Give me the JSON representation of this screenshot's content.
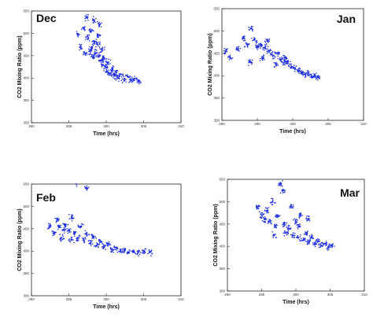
{
  "colors": {
    "points": "#1f2fe6",
    "frame": "#222222",
    "background": "#ffffff"
  },
  "chart_data": [
    {
      "type": "scatter",
      "panel_label": "Dec",
      "legend_position": "top-left",
      "xlabel": "Time (hrs)",
      "ylabel": "CO2 Mixing Ratio (ppm)",
      "xlim": [
        290,
        310
      ],
      "ylim": [
        300,
        550
      ],
      "xticks": [
        "290",
        "295",
        "300",
        "305",
        "310"
      ],
      "yticks": [
        "300",
        "350",
        "400",
        "450",
        "500",
        "550"
      ],
      "grid": false,
      "series": [
        {
          "values": [
            [
              296.2,
              498
            ],
            [
              296.6,
              470
            ],
            [
              297.0,
              512
            ],
            [
              297.3,
              535
            ],
            [
              297.6,
              490
            ],
            [
              297.9,
              505
            ],
            [
              298.1,
              470
            ],
            [
              298.3,
              530
            ],
            [
              298.4,
              480
            ],
            [
              298.6,
              455
            ],
            [
              298.8,
              475
            ],
            [
              299.0,
              450
            ],
            [
              299.1,
              520
            ],
            [
              299.3,
              440
            ],
            [
              299.5,
              430
            ],
            [
              299.7,
              445
            ],
            [
              299.9,
              425
            ],
            [
              300.1,
              415
            ],
            [
              300.3,
              435
            ],
            [
              300.5,
              410
            ],
            [
              300.8,
              420
            ],
            [
              301.0,
              405
            ],
            [
              301.3,
              412
            ],
            [
              301.6,
              400
            ],
            [
              302.0,
              408
            ],
            [
              302.4,
              398
            ],
            [
              302.9,
              403
            ],
            [
              303.3,
              396
            ],
            [
              303.8,
              399
            ],
            [
              304.3,
              394
            ],
            [
              297.8,
              460
            ],
            [
              298.9,
              495
            ],
            [
              299.4,
              465
            ],
            [
              298.2,
              447
            ],
            [
              297.2,
              455
            ]
          ]
        }
      ]
    },
    {
      "type": "scatter",
      "panel_label": "Jan",
      "legend_position": "top-right",
      "xlabel": "Time (hrs)",
      "ylabel": "CO2 Mixing Ratio (ppm)",
      "xlim": [
        290,
        310
      ],
      "ylim": [
        300,
        550
      ],
      "xticks": [
        "290",
        "295",
        "300",
        "305",
        "310"
      ],
      "yticks": [
        "300",
        "350",
        "400",
        "450",
        "500",
        "550"
      ],
      "grid": false,
      "series": [
        {
          "values": [
            [
              290.5,
              455
            ],
            [
              291.2,
              440
            ],
            [
              292.3,
              460
            ],
            [
              293.1,
              485
            ],
            [
              293.6,
              470
            ],
            [
              294.1,
              505
            ],
            [
              294.6,
              480
            ],
            [
              295.0,
              465
            ],
            [
              295.5,
              470
            ],
            [
              296.1,
              462
            ],
            [
              296.7,
              455
            ],
            [
              297.2,
              445
            ],
            [
              297.8,
              450
            ],
            [
              298.3,
              435
            ],
            [
              298.8,
              430
            ],
            [
              299.3,
              428
            ],
            [
              299.8,
              420
            ],
            [
              300.3,
              415
            ],
            [
              300.8,
              412
            ],
            [
              301.3,
              408
            ],
            [
              301.8,
              402
            ],
            [
              302.2,
              405
            ],
            [
              302.7,
              398
            ],
            [
              303.1,
              400
            ],
            [
              303.6,
              396
            ],
            [
              294.0,
              430
            ],
            [
              295.8,
              440
            ],
            [
              297.6,
              425
            ],
            [
              299.0,
              440
            ],
            [
              296.4,
              478
            ]
          ]
        }
      ]
    },
    {
      "type": "scatter",
      "panel_label": "Feb",
      "legend_position": "top-left",
      "xlabel": "Time (hrs)",
      "ylabel": "CO2 Mixing Ratio (ppm)",
      "xlim": [
        290,
        310
      ],
      "ylim": [
        300,
        550
      ],
      "xticks": [
        "290",
        "295",
        "300",
        "305",
        "310"
      ],
      "yticks": [
        "300",
        "350",
        "400",
        "450",
        "500",
        "550"
      ],
      "grid": false,
      "series": [
        {
          "values": [
            [
              292.5,
              455
            ],
            [
              293.0,
              440
            ],
            [
              293.5,
              470
            ],
            [
              294.0,
              430
            ],
            [
              294.5,
              460
            ],
            [
              295.0,
              445
            ],
            [
              295.4,
              475
            ],
            [
              295.8,
              440
            ],
            [
              296.2,
              430
            ],
            [
              296.6,
              455
            ],
            [
              297.0,
              425
            ],
            [
              297.4,
              440
            ],
            [
              297.9,
              418
            ],
            [
              298.3,
              430
            ],
            [
              298.7,
              412
            ],
            [
              299.2,
              420
            ],
            [
              299.7,
              408
            ],
            [
              300.2,
              415
            ],
            [
              300.8,
              403
            ],
            [
              301.3,
              408
            ],
            [
              301.9,
              400
            ],
            [
              302.4,
              402
            ],
            [
              303.0,
              398
            ],
            [
              303.6,
              400
            ],
            [
              304.3,
              397
            ],
            [
              305.0,
              399
            ],
            [
              305.8,
              398
            ],
            [
              296.0,
              550
            ],
            [
              297.4,
              540
            ],
            [
              295.3,
              425
            ],
            [
              294.3,
              448
            ],
            [
              293.7,
              455
            ]
          ]
        }
      ]
    },
    {
      "type": "scatter",
      "panel_label": "Mar",
      "legend_position": "top-right",
      "xlabel": "Time (hrs)",
      "ylabel": "CO2 Mixing Ratio (ppm)",
      "xlim": [
        290,
        310
      ],
      "ylim": [
        300,
        550
      ],
      "xticks": [
        "290",
        "295",
        "300",
        "305",
        "310"
      ],
      "yticks": [
        "300",
        "350",
        "400",
        "450",
        "500",
        "550"
      ],
      "grid": false,
      "series": [
        {
          "values": [
            [
              294.5,
              490
            ],
            [
              295.0,
              470
            ],
            [
              295.5,
              460
            ],
            [
              295.8,
              480
            ],
            [
              296.2,
              455
            ],
            [
              296.6,
              500
            ],
            [
              297.0,
              445
            ],
            [
              297.4,
              470
            ],
            [
              297.8,
              540
            ],
            [
              298.1,
              525
            ],
            [
              298.3,
              450
            ],
            [
              298.6,
              430
            ],
            [
              299.0,
              440
            ],
            [
              299.3,
              490
            ],
            [
              299.6,
              425
            ],
            [
              300.0,
              455
            ],
            [
              300.3,
              420
            ],
            [
              300.7,
              470
            ],
            [
              301.1,
              415
            ],
            [
              301.5,
              430
            ],
            [
              301.9,
              410
            ],
            [
              302.3,
              420
            ],
            [
              302.8,
              405
            ],
            [
              303.2,
              412
            ],
            [
              303.7,
              402
            ],
            [
              304.2,
              406
            ],
            [
              304.8,
              400
            ],
            [
              305.3,
              402
            ],
            [
              296.8,
              425
            ],
            [
              300.5,
              445
            ],
            [
              301.8,
              462
            ]
          ]
        }
      ]
    }
  ]
}
